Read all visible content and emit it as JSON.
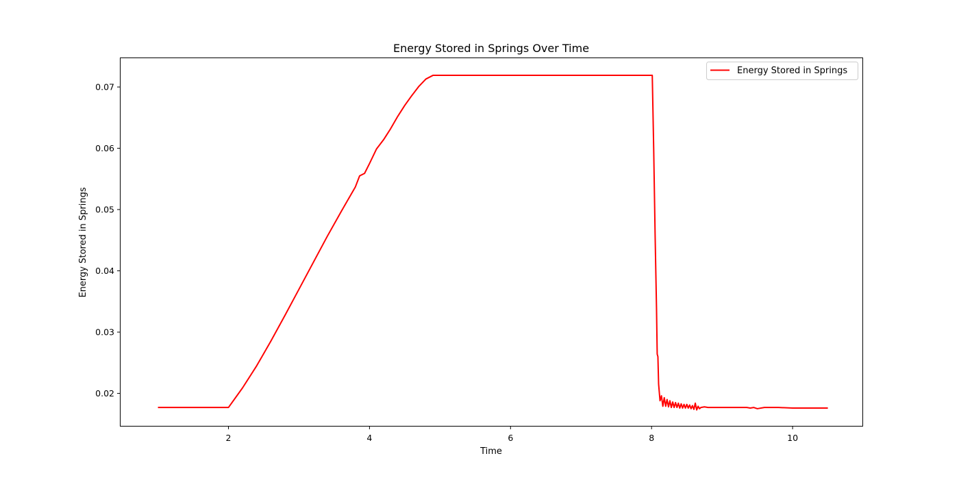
{
  "chart_data": {
    "type": "line",
    "title": "Energy Stored in Springs Over Time",
    "xlabel": "Time",
    "ylabel": "Energy Stored in Springs",
    "xlim": [
      0.47,
      10.99
    ],
    "ylim": [
      0.0147,
      0.0747
    ],
    "x_ticks": [
      2,
      4,
      6,
      8,
      10
    ],
    "x_tick_labels": [
      "2",
      "4",
      "6",
      "8",
      "10"
    ],
    "y_ticks": [
      0.02,
      0.03,
      0.04,
      0.05,
      0.06,
      0.07
    ],
    "y_tick_labels": [
      "0.02",
      "0.03",
      "0.04",
      "0.05",
      "0.06",
      "0.07"
    ],
    "grid": false,
    "legend_position": "upper right",
    "series": [
      {
        "name": "Energy Stored in Springs",
        "color": "#ff0000",
        "x": [
          1.0,
          1.5,
          2.0,
          2.2,
          2.4,
          2.6,
          2.8,
          3.0,
          3.2,
          3.4,
          3.6,
          3.8,
          3.86,
          3.93,
          4.0,
          4.1,
          4.2,
          4.3,
          4.4,
          4.5,
          4.6,
          4.7,
          4.8,
          4.9,
          5.0,
          5.2,
          5.5,
          5.8,
          6.0,
          6.5,
          7.0,
          7.5,
          7.9,
          8.01,
          8.03,
          8.05,
          8.07,
          8.08,
          8.09,
          8.1,
          8.12,
          8.14,
          8.16,
          8.18,
          8.2,
          8.22,
          8.24,
          8.26,
          8.28,
          8.3,
          8.32,
          8.34,
          8.36,
          8.38,
          8.4,
          8.42,
          8.44,
          8.46,
          8.48,
          8.5,
          8.52,
          8.54,
          8.56,
          8.58,
          8.6,
          8.62,
          8.64,
          8.66,
          8.68,
          8.7,
          8.75,
          8.8,
          8.9,
          9.0,
          9.2,
          9.35,
          9.4,
          9.45,
          9.5,
          9.6,
          9.8,
          10.0,
          10.5
        ],
        "values": [
          0.0177,
          0.0177,
          0.0177,
          0.0209,
          0.0245,
          0.0285,
          0.0327,
          0.037,
          0.0413,
          0.0456,
          0.0497,
          0.0537,
          0.0555,
          0.0559,
          0.0575,
          0.0599,
          0.0614,
          0.0632,
          0.0652,
          0.067,
          0.0686,
          0.0701,
          0.0713,
          0.0719,
          0.0719,
          0.0719,
          0.0719,
          0.0719,
          0.0719,
          0.0719,
          0.0719,
          0.0719,
          0.0719,
          0.0719,
          0.06,
          0.046,
          0.034,
          0.0264,
          0.026,
          0.0215,
          0.0188,
          0.0196,
          0.0179,
          0.0193,
          0.0179,
          0.019,
          0.0178,
          0.0188,
          0.0177,
          0.0186,
          0.0177,
          0.0185,
          0.0177,
          0.0184,
          0.0176,
          0.0183,
          0.0176,
          0.0182,
          0.0176,
          0.0182,
          0.0176,
          0.0181,
          0.0175,
          0.018,
          0.0174,
          0.0184,
          0.0173,
          0.0179,
          0.0175,
          0.0177,
          0.0178,
          0.0177,
          0.0177,
          0.0177,
          0.0177,
          0.0177,
          0.0176,
          0.0177,
          0.0175,
          0.0177,
          0.0177,
          0.0176,
          0.0176
        ]
      }
    ]
  }
}
